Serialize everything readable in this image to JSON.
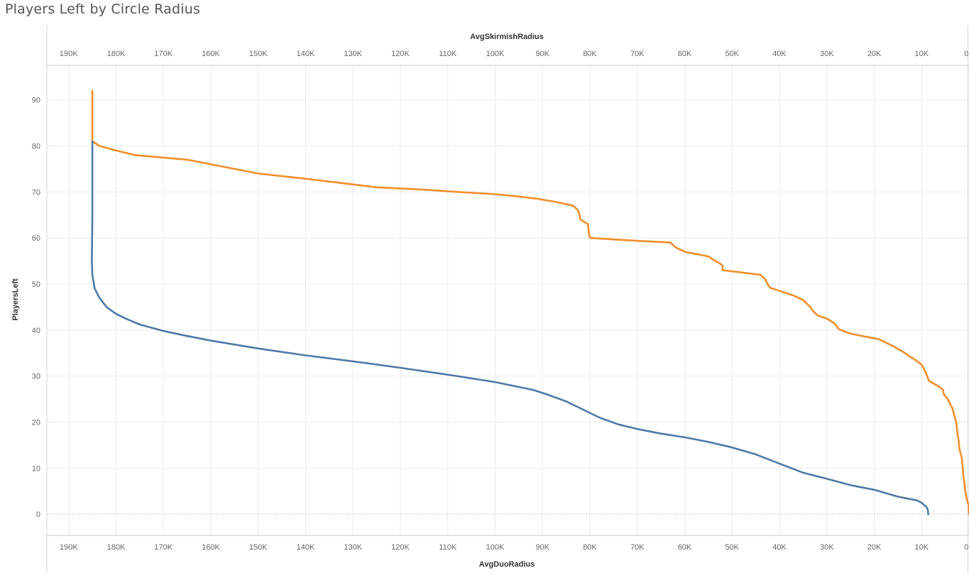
{
  "title": "Players Left by Circle Radius",
  "chart_data": {
    "type": "line",
    "title": "Players Left by Circle Radius",
    "ylabel": "PlayersLeft",
    "xlabel_top": "AvgSkirmishRadius",
    "xlabel_bottom": "AvgDuoRadius",
    "xlim": [
      194600,
      0
    ],
    "ylim": [
      -4.6,
      97.5
    ],
    "x_ticks": [
      190000,
      180000,
      170000,
      160000,
      150000,
      140000,
      130000,
      120000,
      110000,
      100000,
      90000,
      80000,
      70000,
      60000,
      50000,
      40000,
      30000,
      20000,
      10000,
      0
    ],
    "x_tick_labels": [
      "190K",
      "180K",
      "170K",
      "160K",
      "150K",
      "140K",
      "130K",
      "120K",
      "110K",
      "100K",
      "90K",
      "80K",
      "70K",
      "60K",
      "50K",
      "40K",
      "30K",
      "20K",
      "10K",
      "0K"
    ],
    "y_ticks": [
      0,
      10,
      20,
      30,
      40,
      50,
      60,
      70,
      80,
      90
    ],
    "y_tick_labels": [
      "0",
      "10",
      "20",
      "30",
      "40",
      "50",
      "60",
      "70",
      "80",
      "90"
    ],
    "series": [
      {
        "name": "AvgSkirmishRadius",
        "axis": "top",
        "color": "#F28E2B",
        "points": [
          [
            185000,
            92
          ],
          [
            185000,
            81
          ],
          [
            183500,
            80
          ],
          [
            180000,
            79
          ],
          [
            176000,
            78
          ],
          [
            165000,
            77
          ],
          [
            160000,
            76
          ],
          [
            150000,
            74
          ],
          [
            141000,
            73
          ],
          [
            133000,
            72
          ],
          [
            125000,
            71
          ],
          [
            115000,
            70.5
          ],
          [
            108000,
            70
          ],
          [
            100000,
            69.5
          ],
          [
            95000,
            69
          ],
          [
            91000,
            68.5
          ],
          [
            87000,
            67.8
          ],
          [
            83500,
            67
          ],
          [
            82500,
            66
          ],
          [
            82200,
            65
          ],
          [
            82000,
            64
          ],
          [
            80400,
            63
          ],
          [
            80200,
            61
          ],
          [
            80000,
            60
          ],
          [
            72000,
            59.5
          ],
          [
            63000,
            59
          ],
          [
            62000,
            58
          ],
          [
            60000,
            57
          ],
          [
            55000,
            56
          ],
          [
            54000,
            55.3
          ],
          [
            52500,
            54.4
          ],
          [
            52000,
            54
          ],
          [
            52000,
            53
          ],
          [
            44000,
            52
          ],
          [
            43000,
            51
          ],
          [
            42500,
            50
          ],
          [
            42000,
            49.2
          ],
          [
            40000,
            48.5
          ],
          [
            37000,
            47.5
          ],
          [
            35000,
            46.5
          ],
          [
            33500,
            45
          ],
          [
            33000,
            44.2
          ],
          [
            32000,
            43.2
          ],
          [
            30000,
            42.5
          ],
          [
            28500,
            41.5
          ],
          [
            28000,
            41
          ],
          [
            27500,
            40.2
          ],
          [
            27000,
            40
          ],
          [
            25000,
            39.2
          ],
          [
            22000,
            38.6
          ],
          [
            19000,
            38
          ],
          [
            16000,
            36.5
          ],
          [
            13500,
            35
          ],
          [
            12500,
            34.2
          ],
          [
            12000,
            34
          ],
          [
            10000,
            32.5
          ],
          [
            9000,
            30.5
          ],
          [
            8500,
            29
          ],
          [
            7500,
            28.4
          ],
          [
            6000,
            27.5
          ],
          [
            5500,
            27
          ],
          [
            5300,
            26
          ],
          [
            4500,
            25
          ],
          [
            4000,
            24
          ],
          [
            3500,
            23
          ],
          [
            3000,
            21
          ],
          [
            2700,
            20
          ],
          [
            2500,
            18
          ],
          [
            2200,
            16
          ],
          [
            2000,
            14
          ],
          [
            1700,
            13
          ],
          [
            1500,
            12
          ],
          [
            1300,
            10
          ],
          [
            1200,
            8.2
          ],
          [
            1000,
            7
          ],
          [
            800,
            5
          ],
          [
            400,
            3
          ],
          [
            100,
            2
          ],
          [
            0,
            0
          ]
        ]
      },
      {
        "name": "AvgDuoRadius",
        "axis": "bottom",
        "color": "#4E79A7",
        "points": [
          [
            185000,
            81
          ],
          [
            185000,
            75
          ],
          [
            185000,
            65
          ],
          [
            185100,
            55
          ],
          [
            185000,
            52
          ],
          [
            184500,
            49
          ],
          [
            183500,
            47
          ],
          [
            182000,
            45
          ],
          [
            180000,
            43.5
          ],
          [
            178000,
            42.5
          ],
          [
            175000,
            41.2
          ],
          [
            170000,
            39.8
          ],
          [
            165000,
            38.7
          ],
          [
            160000,
            37.7
          ],
          [
            150000,
            36
          ],
          [
            140000,
            34.5
          ],
          [
            130000,
            33.2
          ],
          [
            120000,
            31.8
          ],
          [
            110000,
            30.3
          ],
          [
            100000,
            28.7
          ],
          [
            92000,
            27
          ],
          [
            89000,
            26
          ],
          [
            85000,
            24.5
          ],
          [
            82000,
            23
          ],
          [
            78000,
            21
          ],
          [
            74000,
            19.5
          ],
          [
            70000,
            18.5
          ],
          [
            65000,
            17.5
          ],
          [
            60000,
            16.7
          ],
          [
            55000,
            15.7
          ],
          [
            50000,
            14.5
          ],
          [
            45000,
            13
          ],
          [
            40000,
            11
          ],
          [
            35000,
            9
          ],
          [
            30000,
            7.7
          ],
          [
            25000,
            6.3
          ],
          [
            20000,
            5.3
          ],
          [
            15000,
            3.8
          ],
          [
            11000,
            3.0
          ],
          [
            10000,
            2.5
          ],
          [
            9000,
            1.6
          ],
          [
            8700,
            1.0
          ],
          [
            8600,
            0
          ]
        ]
      }
    ]
  }
}
